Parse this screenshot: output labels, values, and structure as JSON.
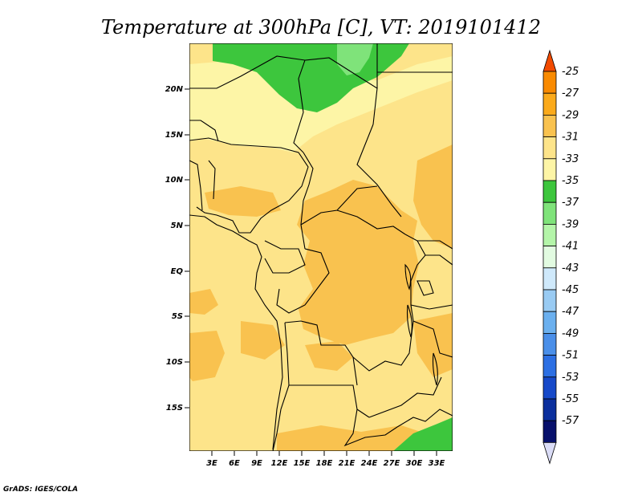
{
  "title": "Temperature at 300hPa [C], VT: 2019101412",
  "credit": "GrADS: IGES/COLA",
  "colors": {
    "c33": "#fde48a",
    "c31": "#f9c24f",
    "c35": "#fdf5a6",
    "c37": "#3dc63d",
    "c39": "#7fe37a",
    "border": "#000000"
  },
  "lat_labels": [
    "20N",
    "15N",
    "10N",
    "5N",
    "EQ",
    "5S",
    "10S",
    "15S"
  ],
  "lon_labels": [
    "3E",
    "6E",
    "9E",
    "12E",
    "15E",
    "18E",
    "21E",
    "24E",
    "27E",
    "30E",
    "33E"
  ],
  "colorbar": {
    "labels": [
      "-25",
      "-27",
      "-29",
      "-31",
      "-33",
      "-35",
      "-37",
      "-39",
      "-41",
      "-43",
      "-45",
      "-47",
      "-49",
      "-51",
      "-53",
      "-55",
      "-57"
    ],
    "colors": [
      "#f24a00",
      "#f98a00",
      "#fbaa1b",
      "#f9c24f",
      "#fde48a",
      "#fdf5a6",
      "#3dc63d",
      "#7fe37a",
      "#b4f5a9",
      "#e2fbe1",
      "#cfe9fb",
      "#99cbf3",
      "#6bb0ef",
      "#4a8fe9",
      "#2c6fe3",
      "#1649c9",
      "#0b2f9d",
      "#07106b",
      "#dadcf6"
    ]
  }
}
